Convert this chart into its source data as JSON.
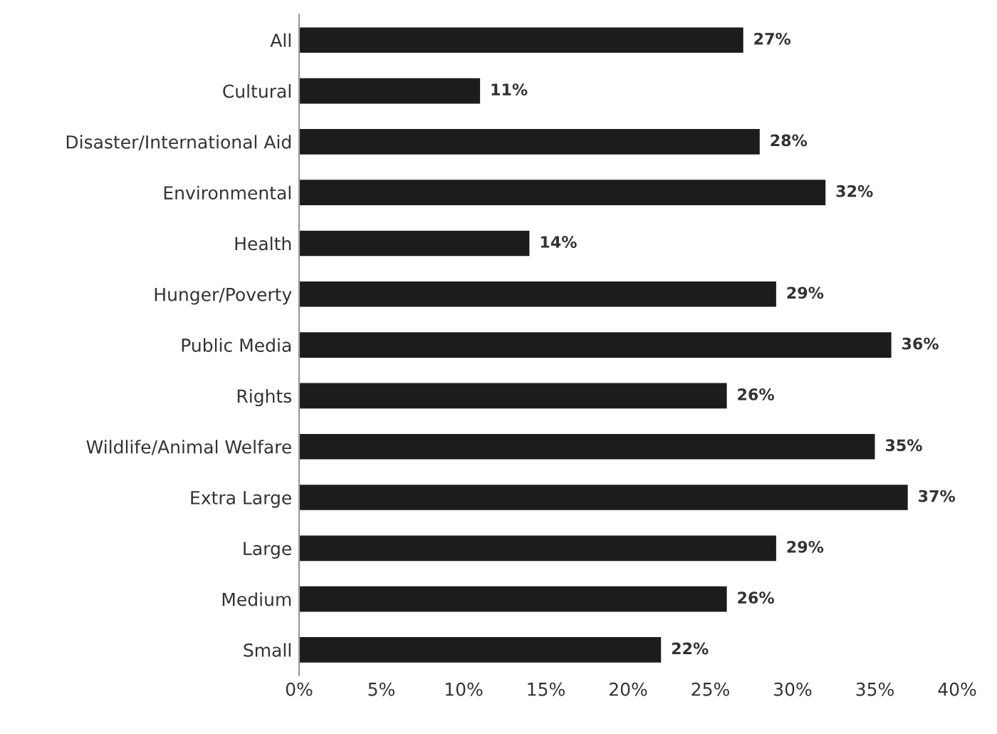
{
  "chart_data": {
    "type": "bar",
    "orientation": "horizontal",
    "categories": [
      "All",
      "Cultural",
      "Disaster/International Aid",
      "Environmental",
      "Health",
      "Hunger/Poverty",
      "Public Media",
      "Rights",
      "Wildlife/Animal Welfare",
      "Extra Large",
      "Large",
      "Medium",
      "Small"
    ],
    "values": [
      27,
      11,
      28,
      32,
      14,
      29,
      36,
      26,
      35,
      37,
      29,
      26,
      22
    ],
    "value_labels": [
      "27%",
      "11%",
      "28%",
      "32%",
      "14%",
      "29%",
      "36%",
      "26%",
      "35%",
      "37%",
      "29%",
      "26%",
      "22%"
    ],
    "color": "#1c1c1c",
    "xlim": [
      0,
      40
    ],
    "xticks": [
      {
        "value": 0,
        "label": "0%"
      },
      {
        "value": 5,
        "label": "5%"
      },
      {
        "value": 10,
        "label": "10%"
      },
      {
        "value": 15,
        "label": "15%"
      },
      {
        "value": 20,
        "label": "20%"
      },
      {
        "value": 25,
        "label": "25%"
      },
      {
        "value": 30,
        "label": "30%"
      },
      {
        "value": 35,
        "label": "35%"
      },
      {
        "value": 40,
        "label": "40%"
      }
    ],
    "grid": false
  }
}
